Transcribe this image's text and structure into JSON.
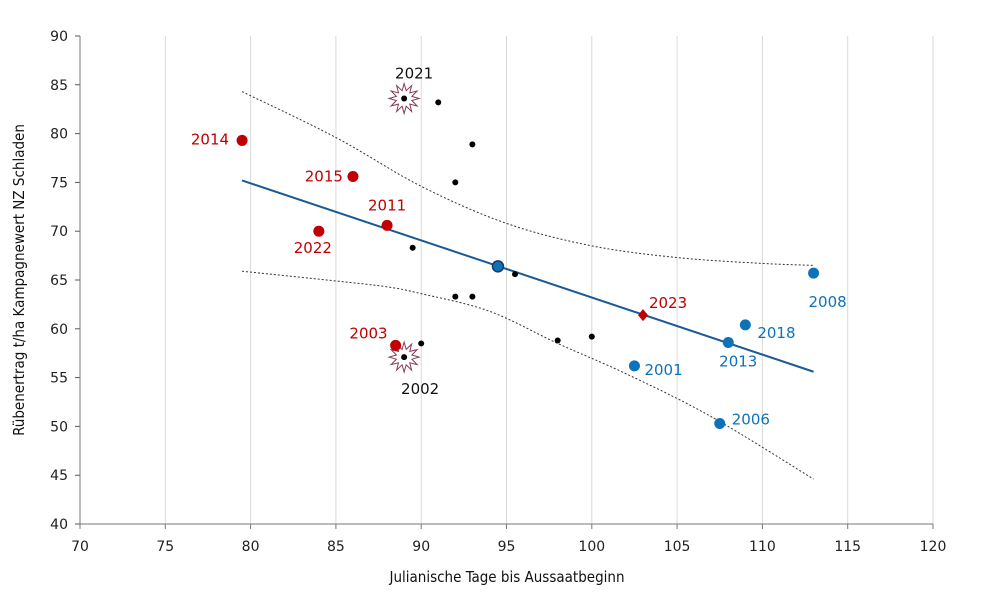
{
  "chart_data": {
    "type": "scatter",
    "xlabel": "Julianische Tage bis Aussaatbeginn",
    "ylabel": "Rübenertrag t/ha Kampagnewert NZ Schladen",
    "xlim": [
      70,
      120
    ],
    "ylim": [
      40,
      90
    ],
    "x_ticks": [
      "70",
      "75",
      "80",
      "85",
      "90",
      "95",
      "100",
      "105",
      "110",
      "115",
      "120"
    ],
    "y_ticks": [
      "40",
      "45",
      "50",
      "55",
      "60",
      "65",
      "70",
      "75",
      "80",
      "85",
      "90"
    ],
    "grid": "vertical",
    "colors": {
      "red": "#c00000",
      "blue": "#0e72b8",
      "black": "#000000",
      "trend": "#1a5a96",
      "band": "#333333"
    },
    "red_points": [
      {
        "year": "2014",
        "x": 79.5,
        "y": 79.3
      },
      {
        "year": "2015",
        "x": 86.0,
        "y": 75.6
      },
      {
        "year": "2011",
        "x": 88.0,
        "y": 70.6
      },
      {
        "year": "2022",
        "x": 84.0,
        "y": 70.0
      },
      {
        "year": "2003",
        "x": 88.5,
        "y": 58.3
      }
    ],
    "blue_points": [
      {
        "year": "2008",
        "x": 113.0,
        "y": 65.7
      },
      {
        "year": "2018",
        "x": 109.0,
        "y": 60.4
      },
      {
        "year": "2013",
        "x": 108.0,
        "y": 58.6
      },
      {
        "year": "2001",
        "x": 102.5,
        "y": 56.2
      },
      {
        "year": "2006",
        "x": 107.5,
        "y": 50.3
      }
    ],
    "highlight_point": {
      "year": "2023",
      "x": 103.0,
      "y": 61.4
    },
    "mean_point": {
      "x": 94.5,
      "y": 66.4
    },
    "black_points": [
      {
        "x": 89.0,
        "y": 83.6
      },
      {
        "x": 91.0,
        "y": 83.2
      },
      {
        "x": 93.0,
        "y": 78.9
      },
      {
        "x": 92.0,
        "y": 75.0
      },
      {
        "x": 89.5,
        "y": 68.3
      },
      {
        "x": 95.5,
        "y": 65.6
      },
      {
        "x": 92.0,
        "y": 63.3
      },
      {
        "x": 93.0,
        "y": 63.3
      },
      {
        "x": 98.0,
        "y": 58.8
      },
      {
        "x": 100.0,
        "y": 59.2
      },
      {
        "x": 90.0,
        "y": 58.5
      },
      {
        "x": 89.0,
        "y": 57.1
      }
    ],
    "burst_labels": [
      {
        "year": "2021",
        "x": 89.0,
        "y": 83.6
      },
      {
        "year": "2002",
        "x": 89.0,
        "y": 57.1
      }
    ],
    "trend_line": [
      [
        79.5,
        75.2
      ],
      [
        113.0,
        55.6
      ]
    ],
    "upper_band": [
      [
        79.5,
        84.3
      ],
      [
        85.0,
        79.6
      ],
      [
        90.0,
        74.6
      ],
      [
        95.0,
        70.8
      ],
      [
        100.0,
        68.5
      ],
      [
        105.0,
        67.3
      ],
      [
        110.0,
        66.7
      ],
      [
        113.0,
        66.5
      ]
    ],
    "lower_band": [
      [
        79.5,
        65.9
      ],
      [
        85.0,
        64.9
      ],
      [
        88.0,
        64.3
      ],
      [
        90.0,
        63.6
      ],
      [
        94.0,
        61.8
      ],
      [
        98.0,
        58.5
      ],
      [
        102.0,
        55.4
      ],
      [
        107.0,
        51.0
      ],
      [
        113.0,
        44.6
      ]
    ]
  }
}
